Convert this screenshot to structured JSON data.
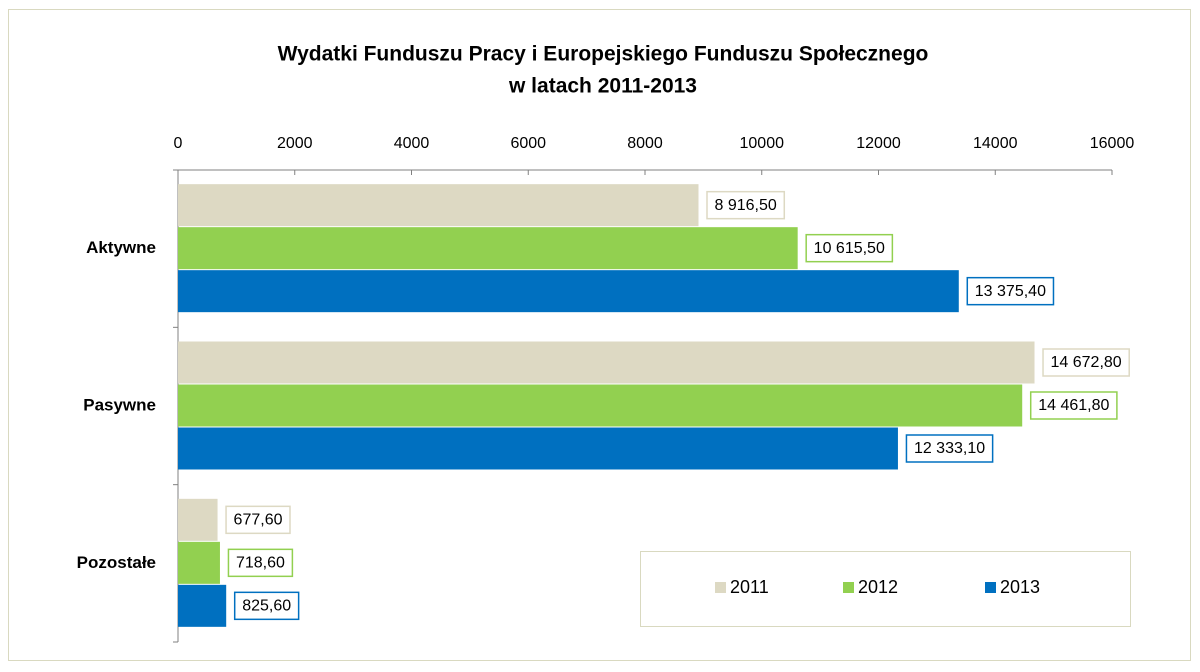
{
  "chart_data": {
    "type": "hbar",
    "title": [
      "Wydatki Funduszu Pracy i Europejskiego Funduszu  Społecznego",
      "w latach 2011-2013"
    ],
    "categories": [
      "Aktywne",
      "Pasywne",
      "Pozostałe"
    ],
    "series": [
      {
        "name": "2011",
        "color": "#ddd9c3",
        "values": [
          8916.5,
          14672.8,
          677.6
        ],
        "value_labels": [
          "8 916,50",
          "14 672,80",
          "677,60"
        ]
      },
      {
        "name": "2012",
        "color": "#92d050",
        "values": [
          10615.5,
          14461.8,
          718.6
        ],
        "value_labels": [
          "10 615,50",
          "14 461,80",
          "718,60"
        ]
      },
      {
        "name": "2013",
        "color": "#0070c0",
        "values": [
          13375.4,
          12333.1,
          825.6
        ],
        "value_labels": [
          "13 375,40",
          "12 333,10",
          "825,60"
        ]
      }
    ],
    "xlim": [
      0,
      16000
    ],
    "xticks": [
      0,
      2000,
      4000,
      6000,
      8000,
      10000,
      12000,
      14000,
      16000
    ],
    "legend": "bottom-right"
  }
}
